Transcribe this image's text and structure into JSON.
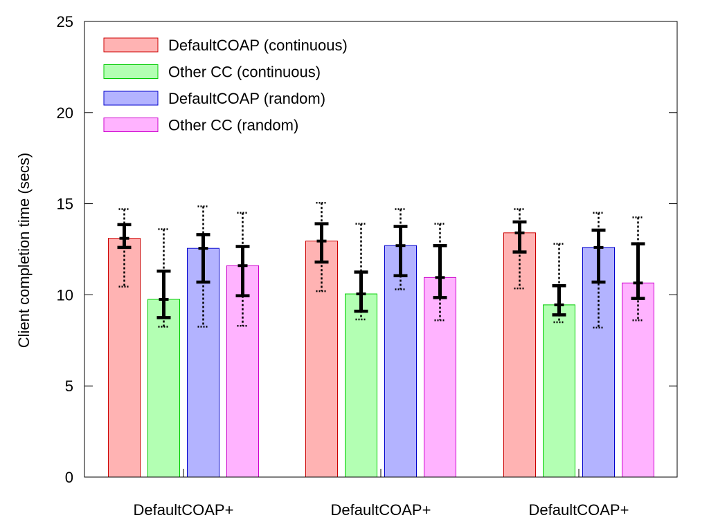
{
  "chart_data": {
    "type": "bar",
    "title": "",
    "xlabel": "",
    "ylabel": "Client completion time (secs)",
    "ylim": [
      0,
      25
    ],
    "yticks": [
      0,
      5,
      10,
      15,
      20,
      25
    ],
    "grid": false,
    "legend_position": "top-left",
    "categories": [
      "DefaultCOAP+",
      "DefaultCOAP+",
      "DefaultCOAP+"
    ],
    "series": [
      {
        "name": "DefaultCOAP (continuous)",
        "color": "#ffb3b3",
        "edge": "#cc0000",
        "values": [
          13.1,
          12.95,
          13.4
        ],
        "whisker_low": [
          10.45,
          10.2,
          10.35
        ],
        "whisker_high": [
          14.7,
          15.05,
          14.7
        ],
        "box_low": [
          12.6,
          11.8,
          12.35
        ],
        "box_high": [
          13.85,
          13.9,
          14.0
        ],
        "median": [
          13.1,
          12.95,
          13.4
        ]
      },
      {
        "name": "Other CC (continuous)",
        "color": "#b3ffb3",
        "edge": "#00cc00",
        "values": [
          9.75,
          10.05,
          9.45
        ],
        "whisker_low": [
          8.25,
          8.65,
          8.5
        ],
        "whisker_high": [
          13.6,
          13.9,
          12.8
        ],
        "box_low": [
          8.75,
          9.1,
          8.9
        ],
        "box_high": [
          11.3,
          11.25,
          10.5
        ],
        "median": [
          9.75,
          10.05,
          9.45
        ]
      },
      {
        "name": "DefaultCOAP (random)",
        "color": "#b3b3ff",
        "edge": "#0000cc",
        "values": [
          12.55,
          12.7,
          12.6
        ],
        "whisker_low": [
          8.25,
          10.3,
          8.2
        ],
        "whisker_high": [
          14.85,
          14.7,
          14.5
        ],
        "box_low": [
          10.7,
          11.05,
          10.7
        ],
        "box_high": [
          13.3,
          13.75,
          13.55
        ],
        "median": [
          12.55,
          12.7,
          12.6
        ]
      },
      {
        "name": "Other CC (random)",
        "color": "#ffb3ff",
        "edge": "#cc00cc",
        "values": [
          11.6,
          10.95,
          10.65
        ],
        "whisker_low": [
          8.3,
          8.6,
          8.6
        ],
        "whisker_high": [
          14.5,
          13.9,
          14.25
        ],
        "box_low": [
          9.95,
          9.85,
          9.8
        ],
        "box_high": [
          12.65,
          12.7,
          12.8
        ],
        "median": [
          11.6,
          10.95,
          10.65
        ]
      }
    ]
  }
}
